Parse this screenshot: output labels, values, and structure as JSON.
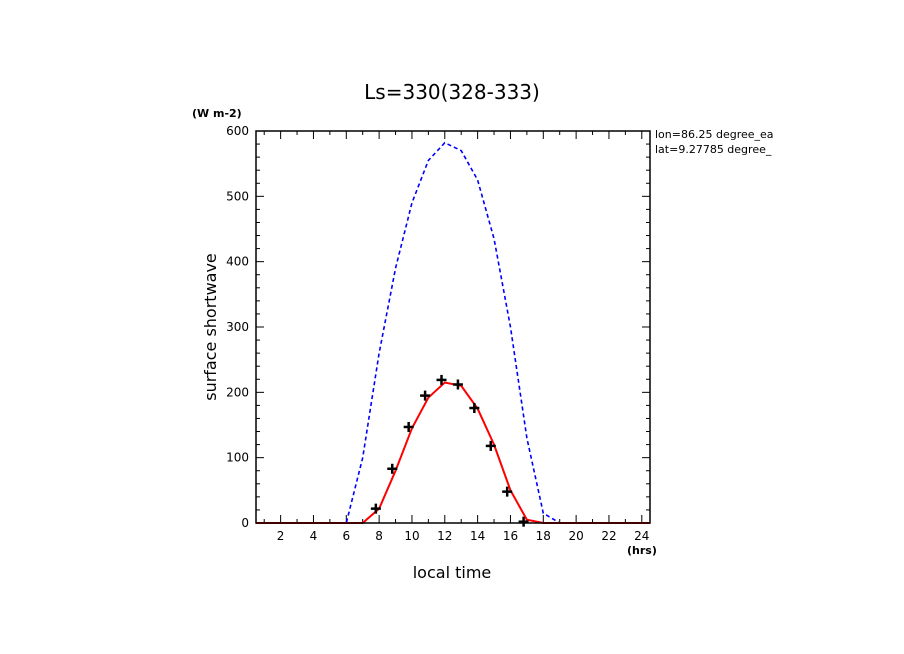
{
  "chart_data": {
    "type": "line",
    "title": "Ls=330(328-333)",
    "xlabel": "local time",
    "ylabel": "surface shortwave",
    "x_unit": "(hrs)",
    "y_unit": "(W m-2)",
    "xlim": [
      0.5,
      24.5
    ],
    "ylim": [
      0,
      600
    ],
    "x_ticks": [
      2,
      4,
      6,
      8,
      10,
      12,
      14,
      16,
      18,
      20,
      22,
      24
    ],
    "y_ticks": [
      0,
      100,
      200,
      300,
      400,
      500,
      600
    ],
    "annotations": [
      "lon=86.25 degree_ea",
      "lat=9.27785 degree_"
    ],
    "grid": false,
    "series": [
      {
        "style": "dashed",
        "color": "#0000ff",
        "x": [
          0.5,
          1,
          2,
          3,
          4,
          5,
          6,
          7,
          8,
          9,
          10,
          11,
          12,
          13,
          14,
          15,
          16,
          17,
          18,
          19,
          20,
          21,
          22,
          23,
          24,
          24.5
        ],
        "y": [
          0,
          0,
          0,
          0,
          0,
          0,
          0,
          100,
          260,
          390,
          490,
          555,
          582,
          570,
          525,
          435,
          300,
          130,
          15,
          0,
          0,
          0,
          0,
          0,
          0,
          0
        ]
      },
      {
        "style": "solid",
        "color": "#ff0000",
        "x": [
          0.5,
          1,
          2,
          3,
          4,
          5,
          6,
          7,
          8,
          9,
          10,
          11,
          12,
          13,
          14,
          15,
          16,
          17,
          18,
          19,
          20,
          21,
          22,
          23,
          24,
          24.5
        ],
        "y": [
          0,
          0,
          0,
          0,
          0,
          0,
          0,
          0,
          22,
          80,
          145,
          192,
          215,
          210,
          175,
          120,
          50,
          5,
          0,
          0,
          0,
          0,
          0,
          0,
          0,
          0
        ]
      },
      {
        "style": "markers",
        "marker": "plus",
        "color": "#000000",
        "x": [
          7.8,
          8.8,
          9.8,
          10.8,
          11.8,
          12.8,
          13.8,
          14.8,
          15.8,
          16.8
        ],
        "y": [
          22,
          83,
          147,
          195,
          219,
          212,
          176,
          118,
          48,
          2
        ]
      }
    ]
  }
}
